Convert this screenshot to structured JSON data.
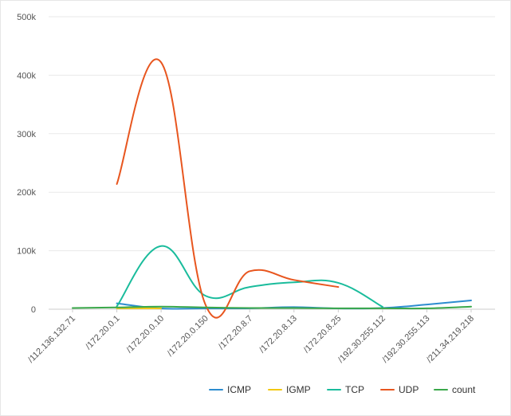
{
  "chart_data": {
    "type": "line",
    "title": "",
    "xlabel": "",
    "ylabel": "",
    "categories": [
      "/112.136.132.71",
      "/172.20.0.1",
      "/172.20.0.10",
      "/172.20.0.150",
      "/172.20.8.7",
      "/172.20.8.13",
      "/172.20.8.25",
      "/192.30.255.112",
      "/192.30.255.113",
      "/211.34.219.218"
    ],
    "ylim": [
      0,
      500000
    ],
    "yticks": [
      0,
      100000,
      200000,
      300000,
      400000,
      500000
    ],
    "ytick_labels": [
      "0",
      "100k",
      "200k",
      "300k",
      "400k",
      "500k"
    ],
    "grid": "horizontal",
    "legend_position": "bottom-right",
    "smooth": true,
    "series": [
      {
        "name": "ICMP",
        "color": "#2c8ccf",
        "values": [
          null,
          10000,
          1000,
          1000,
          1500,
          3500,
          1000,
          2000,
          8000,
          15000
        ]
      },
      {
        "name": "IGMP",
        "color": "#f2c811",
        "values": [
          null,
          1500,
          1500,
          null,
          null,
          null,
          null,
          null,
          null,
          null
        ]
      },
      {
        "name": "TCP",
        "color": "#1abc9c",
        "values": [
          null,
          5000,
          108000,
          23000,
          38000,
          46000,
          45000,
          4000,
          null,
          null
        ]
      },
      {
        "name": "UDP",
        "color": "#e8561f",
        "values": [
          null,
          214000,
          422000,
          8000,
          65000,
          50000,
          38000,
          null,
          null,
          null
        ]
      },
      {
        "name": "count",
        "color": "#3aa84a",
        "values": [
          2000,
          3000,
          4500,
          3000,
          2000,
          2000,
          1500,
          1500,
          1500,
          4500
        ]
      }
    ]
  }
}
